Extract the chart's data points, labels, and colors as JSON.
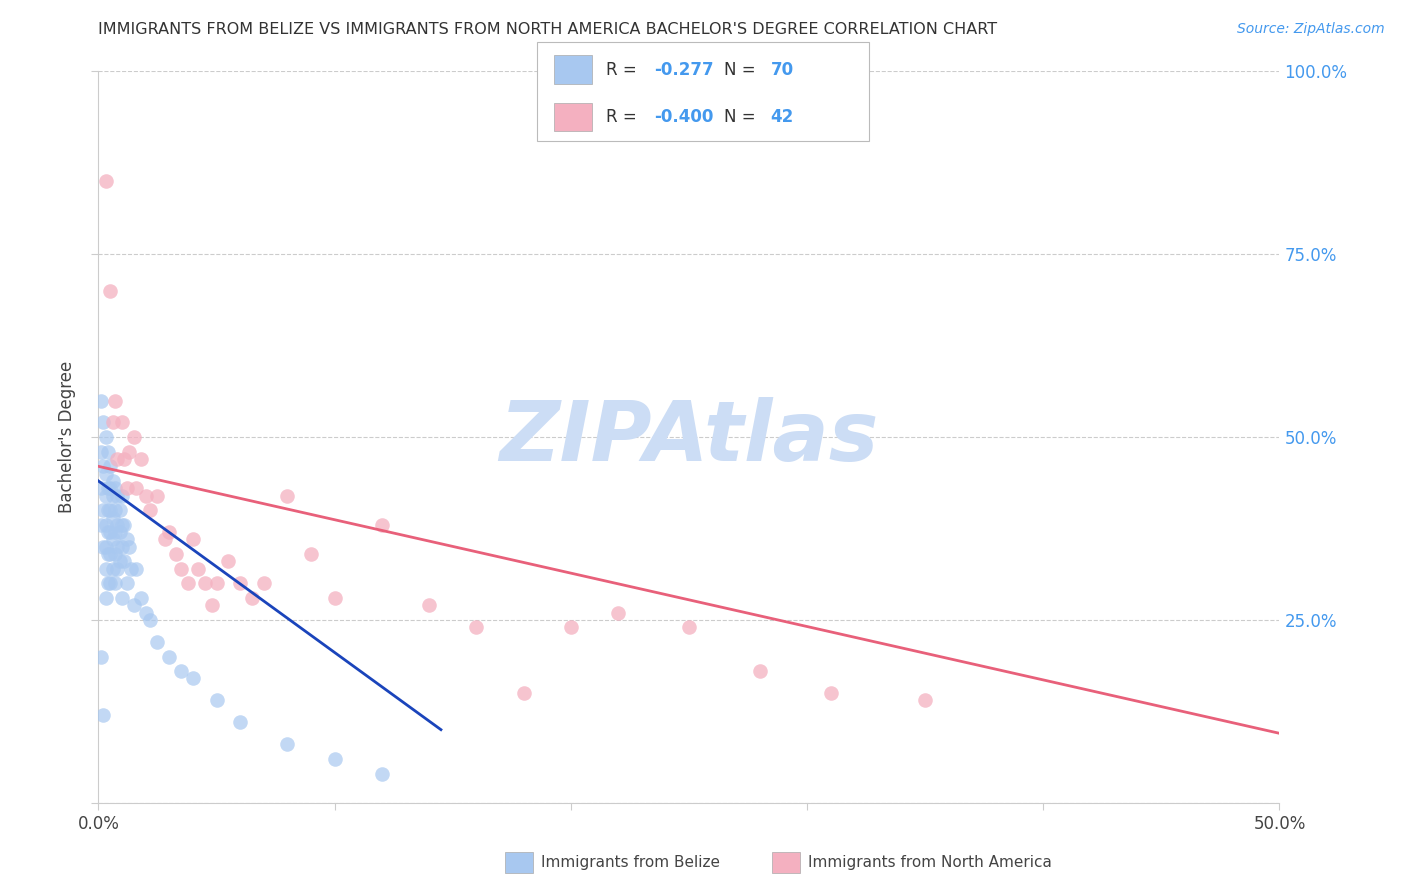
{
  "title": "IMMIGRANTS FROM BELIZE VS IMMIGRANTS FROM NORTH AMERICA BACHELOR'S DEGREE CORRELATION CHART",
  "source": "Source: ZipAtlas.com",
  "ylabel": "Bachelor's Degree",
  "legend_label1": "Immigrants from Belize",
  "legend_label2": "Immigrants from North America",
  "R1": "-0.277",
  "N1": "70",
  "R2": "-0.400",
  "N2": "42",
  "color_blue": "#a8c8f0",
  "color_pink": "#f4b0c0",
  "line_color_blue": "#1a44bb",
  "line_color_pink": "#e8607a",
  "axis_label_color": "#4499ee",
  "watermark_color": "#ccddf5",
  "watermark_text": "ZIPAtlas",
  "xmin": 0.0,
  "xmax": 0.5,
  "ymin": 0.0,
  "ymax": 1.0,
  "blue_x": [
    0.001,
    0.001,
    0.001,
    0.001,
    0.001,
    0.002,
    0.002,
    0.002,
    0.002,
    0.002,
    0.003,
    0.003,
    0.003,
    0.003,
    0.003,
    0.003,
    0.003,
    0.004,
    0.004,
    0.004,
    0.004,
    0.004,
    0.004,
    0.005,
    0.005,
    0.005,
    0.005,
    0.005,
    0.005,
    0.006,
    0.006,
    0.006,
    0.006,
    0.006,
    0.007,
    0.007,
    0.007,
    0.007,
    0.007,
    0.008,
    0.008,
    0.008,
    0.008,
    0.009,
    0.009,
    0.009,
    0.01,
    0.01,
    0.01,
    0.01,
    0.011,
    0.011,
    0.012,
    0.012,
    0.013,
    0.014,
    0.015,
    0.016,
    0.018,
    0.02,
    0.022,
    0.025,
    0.03,
    0.035,
    0.04,
    0.05,
    0.06,
    0.08,
    0.1,
    0.12
  ],
  "blue_y": [
    0.55,
    0.48,
    0.43,
    0.38,
    0.2,
    0.52,
    0.46,
    0.4,
    0.35,
    0.12,
    0.5,
    0.45,
    0.42,
    0.38,
    0.35,
    0.32,
    0.28,
    0.48,
    0.43,
    0.4,
    0.37,
    0.34,
    0.3,
    0.46,
    0.43,
    0.4,
    0.37,
    0.34,
    0.3,
    0.44,
    0.42,
    0.39,
    0.36,
    0.32,
    0.43,
    0.4,
    0.37,
    0.34,
    0.3,
    0.42,
    0.38,
    0.35,
    0.32,
    0.4,
    0.37,
    0.33,
    0.42,
    0.38,
    0.35,
    0.28,
    0.38,
    0.33,
    0.36,
    0.3,
    0.35,
    0.32,
    0.27,
    0.32,
    0.28,
    0.26,
    0.25,
    0.22,
    0.2,
    0.18,
    0.17,
    0.14,
    0.11,
    0.08,
    0.06,
    0.04
  ],
  "pink_x": [
    0.003,
    0.005,
    0.006,
    0.007,
    0.008,
    0.01,
    0.011,
    0.012,
    0.013,
    0.015,
    0.016,
    0.018,
    0.02,
    0.022,
    0.025,
    0.028,
    0.03,
    0.033,
    0.035,
    0.038,
    0.04,
    0.042,
    0.045,
    0.048,
    0.05,
    0.055,
    0.06,
    0.065,
    0.07,
    0.08,
    0.09,
    0.1,
    0.12,
    0.14,
    0.16,
    0.18,
    0.2,
    0.22,
    0.25,
    0.28,
    0.31,
    0.35
  ],
  "pink_y": [
    0.85,
    0.7,
    0.52,
    0.55,
    0.47,
    0.52,
    0.47,
    0.43,
    0.48,
    0.5,
    0.43,
    0.47,
    0.42,
    0.4,
    0.42,
    0.36,
    0.37,
    0.34,
    0.32,
    0.3,
    0.36,
    0.32,
    0.3,
    0.27,
    0.3,
    0.33,
    0.3,
    0.28,
    0.3,
    0.42,
    0.34,
    0.28,
    0.38,
    0.27,
    0.24,
    0.15,
    0.24,
    0.26,
    0.24,
    0.18,
    0.15,
    0.14
  ],
  "blue_line_x": [
    0.0,
    0.145
  ],
  "blue_line_y": [
    0.44,
    0.1
  ],
  "pink_line_x": [
    0.0,
    0.5
  ],
  "pink_line_y": [
    0.46,
    0.095
  ]
}
